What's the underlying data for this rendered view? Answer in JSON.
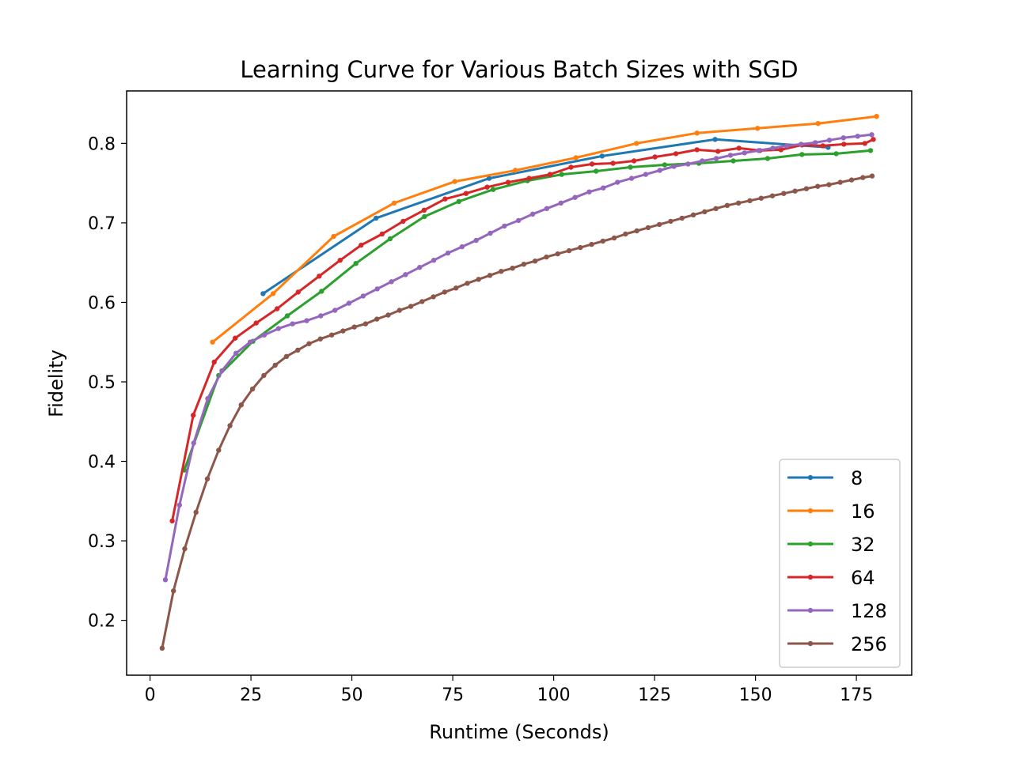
{
  "chart_data": {
    "type": "line",
    "title": "Learning Curve for Various Batch Sizes with SGD",
    "xlabel": "Runtime (Seconds)",
    "ylabel": "Fidelity",
    "xlim": [
      -5.8,
      188.7
    ],
    "ylim": [
      0.131,
      0.866
    ],
    "xticks": [
      0,
      25,
      50,
      75,
      100,
      125,
      150,
      175
    ],
    "yticks": [
      0.2,
      0.3,
      0.4,
      0.5,
      0.6,
      0.7,
      0.8
    ],
    "ytick_labels": [
      "0.2",
      "0.3",
      "0.4",
      "0.5",
      "0.6",
      "0.7",
      "0.8"
    ],
    "grid": false,
    "legend_position": "lower-right",
    "series": [
      {
        "name": "8",
        "color": "#1f77b4",
        "x": [
          28.0,
          56.0,
          84.0,
          112.0,
          140.0,
          168.0
        ],
        "y": [
          0.611,
          0.706,
          0.756,
          0.784,
          0.805,
          0.795
        ]
      },
      {
        "name": "16",
        "color": "#ff7f0e",
        "x": [
          15.5,
          30.5,
          45.5,
          60.5,
          75.5,
          90.5,
          105.5,
          120.5,
          135.5,
          150.5,
          165.5,
          180.0
        ],
        "y": [
          0.55,
          0.611,
          0.683,
          0.725,
          0.752,
          0.766,
          0.782,
          0.8,
          0.813,
          0.819,
          0.825,
          0.834
        ]
      },
      {
        "name": "32",
        "color": "#2ca02c",
        "x": [
          8.5,
          17.0,
          25.5,
          34.0,
          42.5,
          51.0,
          59.5,
          68.0,
          76.5,
          85.0,
          93.5,
          102.0,
          110.5,
          119.0,
          127.5,
          136.0,
          144.5,
          153.0,
          161.5,
          170.0,
          178.5
        ],
        "y": [
          0.389,
          0.508,
          0.551,
          0.583,
          0.614,
          0.649,
          0.68,
          0.708,
          0.727,
          0.742,
          0.753,
          0.761,
          0.765,
          0.77,
          0.773,
          0.775,
          0.778,
          0.781,
          0.786,
          0.787,
          0.791
        ],
        "label_visible": false
      },
      {
        "name": "64",
        "color": "#d62728",
        "x": [
          5.5,
          10.7,
          15.9,
          21.1,
          26.3,
          31.5,
          36.7,
          41.9,
          47.1,
          52.3,
          57.5,
          62.7,
          67.9,
          73.1,
          78.3,
          83.5,
          88.7,
          93.9,
          99.1,
          104.3,
          109.5,
          114.7,
          119.9,
          125.1,
          130.3,
          135.5,
          140.7,
          145.9,
          151.1,
          156.3,
          161.5,
          166.7,
          171.9,
          177.1,
          179.2
        ],
        "y": [
          0.325,
          0.458,
          0.525,
          0.555,
          0.574,
          0.592,
          0.613,
          0.633,
          0.653,
          0.672,
          0.686,
          0.702,
          0.716,
          0.73,
          0.737,
          0.745,
          0.751,
          0.756,
          0.761,
          0.77,
          0.774,
          0.775,
          0.778,
          0.783,
          0.787,
          0.792,
          0.79,
          0.794,
          0.791,
          0.792,
          0.798,
          0.797,
          0.799,
          0.8,
          0.805
        ]
      },
      {
        "name": "128",
        "color": "#9467bd",
        "x": [
          3.8,
          7.3,
          10.8,
          14.3,
          17.8,
          21.3,
          24.8,
          28.3,
          31.8,
          35.3,
          38.8,
          42.3,
          45.8,
          49.3,
          52.8,
          56.3,
          59.8,
          63.3,
          66.8,
          70.3,
          73.8,
          77.3,
          80.8,
          84.3,
          87.8,
          91.3,
          94.8,
          98.3,
          101.8,
          105.3,
          108.8,
          112.3,
          115.8,
          119.3,
          122.8,
          126.3,
          129.8,
          133.3,
          136.8,
          140.3,
          143.8,
          147.3,
          150.8,
          154.3,
          157.8,
          161.3,
          164.8,
          168.3,
          171.8,
          175.3,
          178.8
        ],
        "y": [
          0.251,
          0.345,
          0.423,
          0.479,
          0.514,
          0.536,
          0.55,
          0.559,
          0.567,
          0.573,
          0.577,
          0.583,
          0.59,
          0.599,
          0.608,
          0.617,
          0.626,
          0.635,
          0.644,
          0.653,
          0.662,
          0.67,
          0.678,
          0.687,
          0.696,
          0.703,
          0.711,
          0.718,
          0.725,
          0.732,
          0.739,
          0.744,
          0.751,
          0.756,
          0.761,
          0.766,
          0.771,
          0.774,
          0.778,
          0.781,
          0.785,
          0.788,
          0.791,
          0.794,
          0.797,
          0.799,
          0.801,
          0.804,
          0.807,
          0.809,
          0.811
        ]
      },
      {
        "name": "256",
        "color": "#8c564b",
        "x": [
          3.0,
          5.8,
          8.6,
          11.4,
          14.2,
          17.0,
          19.8,
          22.6,
          25.4,
          28.2,
          31.0,
          33.8,
          36.6,
          39.4,
          42.2,
          45.0,
          47.8,
          50.6,
          53.4,
          56.2,
          59.0,
          61.8,
          64.6,
          67.4,
          70.2,
          73.0,
          75.8,
          78.6,
          81.4,
          84.2,
          87.0,
          89.8,
          92.6,
          95.4,
          98.2,
          101.0,
          103.8,
          106.6,
          109.4,
          112.2,
          115.0,
          117.8,
          120.6,
          123.4,
          126.2,
          129.0,
          131.8,
          134.6,
          137.4,
          140.2,
          143.0,
          145.8,
          148.6,
          151.4,
          154.2,
          157.0,
          159.8,
          162.6,
          165.4,
          168.2,
          171.0,
          173.8,
          176.6,
          178.9
        ],
        "y": [
          0.165,
          0.237,
          0.29,
          0.336,
          0.378,
          0.414,
          0.445,
          0.471,
          0.491,
          0.508,
          0.521,
          0.532,
          0.54,
          0.548,
          0.554,
          0.559,
          0.564,
          0.569,
          0.573,
          0.579,
          0.584,
          0.59,
          0.595,
          0.601,
          0.607,
          0.613,
          0.618,
          0.624,
          0.629,
          0.634,
          0.639,
          0.643,
          0.648,
          0.652,
          0.657,
          0.661,
          0.665,
          0.669,
          0.673,
          0.677,
          0.681,
          0.686,
          0.69,
          0.694,
          0.698,
          0.702,
          0.706,
          0.71,
          0.714,
          0.718,
          0.722,
          0.725,
          0.728,
          0.731,
          0.734,
          0.737,
          0.74,
          0.743,
          0.746,
          0.748,
          0.751,
          0.754,
          0.757,
          0.759
        ]
      }
    ]
  }
}
